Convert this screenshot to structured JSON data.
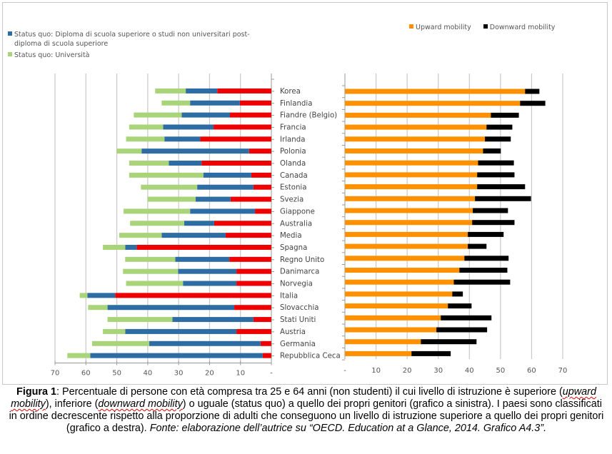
{
  "chart_data": [
    {
      "type": "bar",
      "orientation": "horizontal-stacked-reversed",
      "title": "",
      "xlabel": "",
      "ylabel": "",
      "xlim": [
        70,
        0
      ],
      "grid": true,
      "legend_position": "top-left",
      "x_ticks": [
        "70",
        "60",
        "50",
        "40",
        "30",
        "20",
        "10",
        "-"
      ],
      "categories": [
        "Korea",
        "Finlandia",
        "Fiandre (Belgio)",
        "Francia",
        "Irlanda",
        "Polonia",
        "Olanda",
        "Canada",
        "Estonia",
        "Svezia",
        "Giappone",
        "Australia",
        "Media",
        "Spagna",
        "Regno Unito",
        "Danimarca",
        "Norvegia",
        "Italia",
        "Slovacchia",
        "Stati Uniti",
        "Austria",
        "Germania",
        "Repubblica Ceca"
      ],
      "series": [
        {
          "name": "Downward mobility",
          "color": "#ee0000",
          "in_legend": false,
          "values": [
            17.5,
            10.2,
            13.4,
            18.7,
            23.0,
            7.2,
            22.6,
            6.5,
            5.8,
            13.2,
            5.3,
            18.5,
            14.8,
            43.6,
            13.6,
            11.3,
            11.3,
            50.5,
            12.0,
            5.8,
            11.3,
            3.5,
            2.8
          ]
        },
        {
          "name": "Status quo: Diploma di scuola superiore o studi non universitari post-diploma di scuola superiore",
          "color": "#2e6da4",
          "in_legend": true,
          "values": [
            10.2,
            16.1,
            15.6,
            16.3,
            11.6,
            34.8,
            10.6,
            15.5,
            18.2,
            11.3,
            21.0,
            9.7,
            20.7,
            3.7,
            17.5,
            18.9,
            17.3,
            9.0,
            41.0,
            26.2,
            36.0,
            36.0,
            55.8
          ]
        },
        {
          "name": "Status quo: Università",
          "color": "#a9d47a",
          "in_legend": true,
          "values": [
            9.9,
            9.2,
            15.5,
            11.0,
            12.4,
            8.0,
            12.8,
            24.0,
            18.2,
            15.5,
            21.5,
            17.5,
            13.7,
            7.2,
            16.2,
            17.8,
            18.4,
            2.5,
            6.3,
            21.0,
            7.2,
            18.5,
            7.4
          ]
        }
      ]
    },
    {
      "type": "bar",
      "orientation": "horizontal-stacked",
      "title": "",
      "xlabel": "",
      "ylabel": "",
      "xlim": [
        0,
        70
      ],
      "grid": true,
      "legend_position": "top-right",
      "x_ticks": [
        "-",
        "10",
        "20",
        "30",
        "40",
        "50",
        "60",
        "70"
      ],
      "categories": [
        "Korea",
        "Finlandia",
        "Fiandre (Belgio)",
        "Francia",
        "Irlanda",
        "Polonia",
        "Olanda",
        "Canada",
        "Estonia",
        "Svezia",
        "Giappone",
        "Australia",
        "Media",
        "Spagna",
        "Regno Unito",
        "Danimarca",
        "Norvegia",
        "Italia",
        "Slovacchia",
        "Stati Uniti",
        "Austria",
        "Germania",
        "Repubblica Ceca"
      ],
      "series": [
        {
          "name": "Upward mobility",
          "color": "#ff9000",
          "values": [
            57.9,
            56.3,
            46.9,
            45.5,
            45.0,
            44.4,
            42.8,
            42.5,
            42.5,
            41.8,
            41.1,
            40.9,
            39.5,
            39.5,
            38.4,
            36.8,
            35.0,
            34.5,
            33.1,
            30.8,
            29.4,
            24.4,
            21.4
          ]
        },
        {
          "name": "Downward mobility",
          "color": "#000000",
          "values": [
            4.6,
            8.1,
            9.0,
            8.3,
            8.3,
            5.7,
            11.5,
            12.0,
            15.4,
            18.0,
            11.3,
            13.6,
            11.5,
            6.0,
            14.2,
            15.4,
            18.1,
            3.4,
            7.6,
            16.3,
            16.3,
            17.9,
            12.6
          ]
        }
      ]
    }
  ],
  "legend_left": [
    {
      "label": "Status quo: Diploma di scuola superiore o studi non universitari post-diploma di scuola superiore",
      "color": "#2e6da4"
    },
    {
      "label": "Status quo: Università",
      "color": "#a9d47a"
    }
  ],
  "legend_right": [
    {
      "label": "Upward mobility",
      "color": "#ff9000"
    },
    {
      "label": "Downward mobility",
      "color": "#000000"
    }
  ],
  "caption": {
    "fig_label": "Figura 1",
    "t1": ": Percentuale di persone con età compresa tra 25 e 64 anni (non studenti) il cui livello di istruzione è superiore (",
    "upward": "upward mobility",
    "t2": "), inferiore (",
    "downward": "downward mobility",
    "t3": ") o uguale (status quo) a quello dei propri genitori (grafico a sinistra).  I paesi sono classificati in ordine decrescente rispetto alla proporzione di adulti che conseguono un livello di istruzione superiore a quello dei propri genitori (grafico a destra). ",
    "source": "Fonte: elaborazione dell’autrice su “OECD. Education at a Glance, 2014. Grafico A4.3”."
  }
}
